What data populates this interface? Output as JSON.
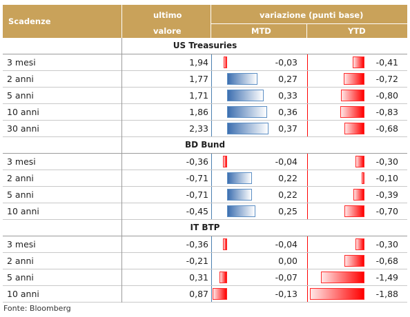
{
  "header": {
    "scadenze": "Scadenze",
    "ultimo_1": "ultimo",
    "ultimo_2": "valore",
    "variazione": "variazione (punti base)",
    "mtd": "MTD",
    "ytd": "YTD"
  },
  "chart_data": {
    "type": "table",
    "columns": [
      "Scadenze",
      "ultimo valore",
      "MTD",
      "YTD"
    ],
    "sections": [
      {
        "title": "US Treasuries",
        "rows": [
          {
            "name": "3 mesi",
            "valore": "1,94",
            "mtd": "-0,03",
            "ytd": "-0,41"
          },
          {
            "name": "2 anni",
            "valore": "1,77",
            "mtd": "0,27",
            "ytd": "-0,72"
          },
          {
            "name": "5 anni",
            "valore": "1,71",
            "mtd": "0,33",
            "ytd": "-0,80"
          },
          {
            "name": "10 anni",
            "valore": "1,86",
            "mtd": "0,36",
            "ytd": "-0,83"
          },
          {
            "name": "30 anni",
            "valore": "2,33",
            "mtd": "0,37",
            "ytd": "-0,68"
          }
        ]
      },
      {
        "title": "BD Bund",
        "rows": [
          {
            "name": "3 mesi",
            "valore": "-0,36",
            "mtd": "-0,04",
            "ytd": "-0,30"
          },
          {
            "name": "2 anni",
            "valore": "-0,71",
            "mtd": "0,22",
            "ytd": "-0,10"
          },
          {
            "name": "5 anni",
            "valore": "-0,71",
            "mtd": "0,22",
            "ytd": "-0,39"
          },
          {
            "name": "10 anni",
            "valore": "-0,45",
            "mtd": "0,25",
            "ytd": "-0,70"
          }
        ]
      },
      {
        "title": "IT BTP",
        "rows": [
          {
            "name": "3 mesi",
            "valore": "-0,36",
            "mtd": "-0,04",
            "ytd": "-0,30"
          },
          {
            "name": "2 anni",
            "valore": "-0,21",
            "mtd": "0,00",
            "ytd": "-0,68"
          },
          {
            "name": "5 anni",
            "valore": "0,31",
            "mtd": "-0,07",
            "ytd": "-1,49"
          },
          {
            "name": "10 anni",
            "valore": "0,87",
            "mtd": "-0,13",
            "ytd": "-1,88"
          }
        ]
      }
    ]
  },
  "colors": {
    "header_bg": "#c9a25a",
    "bar_positive": "#3d6fb0",
    "bar_negative": "#ff0000"
  },
  "footer": "Fonte: Bloomberg"
}
